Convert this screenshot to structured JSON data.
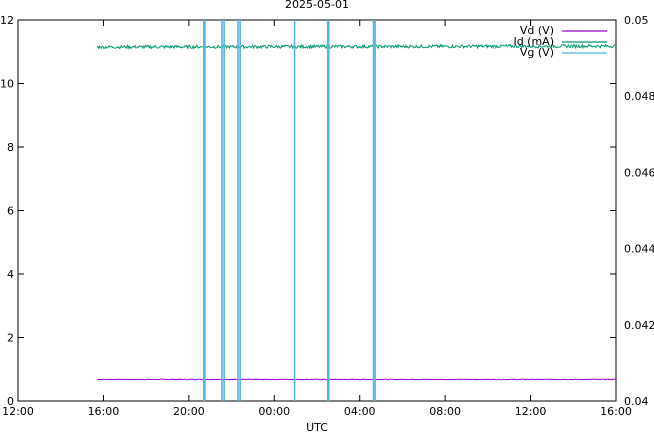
{
  "chart_data": {
    "type": "line",
    "title": "2025-05-01",
    "xlabel": "UTC",
    "ylabel": "",
    "y2label": "",
    "x_ticks": [
      "12:00",
      "16:00",
      "20:00",
      "00:00",
      "04:00",
      "08:00",
      "12:00",
      "16:00"
    ],
    "x_range_hours": [
      0,
      28
    ],
    "ylim": [
      0,
      12
    ],
    "y_ticks": [
      "0",
      "2",
      "4",
      "6",
      "8",
      "10",
      "12"
    ],
    "y2lim": [
      0.04,
      0.05
    ],
    "y2_ticks": [
      "0.04",
      "0.042",
      "0.044",
      "0.046",
      "0.048",
      "0.05"
    ],
    "legend_position": "top-right",
    "grid": false,
    "series": [
      {
        "name": "Vd (V)",
        "axis": "left",
        "color": "#9400d3",
        "x_hours": [
          3.7,
          28
        ],
        "values": [
          0.68,
          0.68
        ],
        "noise": 0.01
      },
      {
        "name": "Id (mA)",
        "axis": "left",
        "color": "#009e73",
        "x_hours": [
          3.7,
          28
        ],
        "values": [
          11.15,
          11.18
        ],
        "noise": 0.05
      },
      {
        "name": "Vg (V)",
        "axis": "left",
        "color": "#56b4e9",
        "baseline": 6,
        "x_hours": [
          3.7,
          28
        ],
        "spikes_hours": [
          8.7,
          8.75,
          9.55,
          9.65,
          10.3,
          10.4,
          12.95,
          14.5,
          14.55,
          16.65,
          16.72
        ],
        "spike_range": [
          0,
          12
        ]
      }
    ]
  }
}
